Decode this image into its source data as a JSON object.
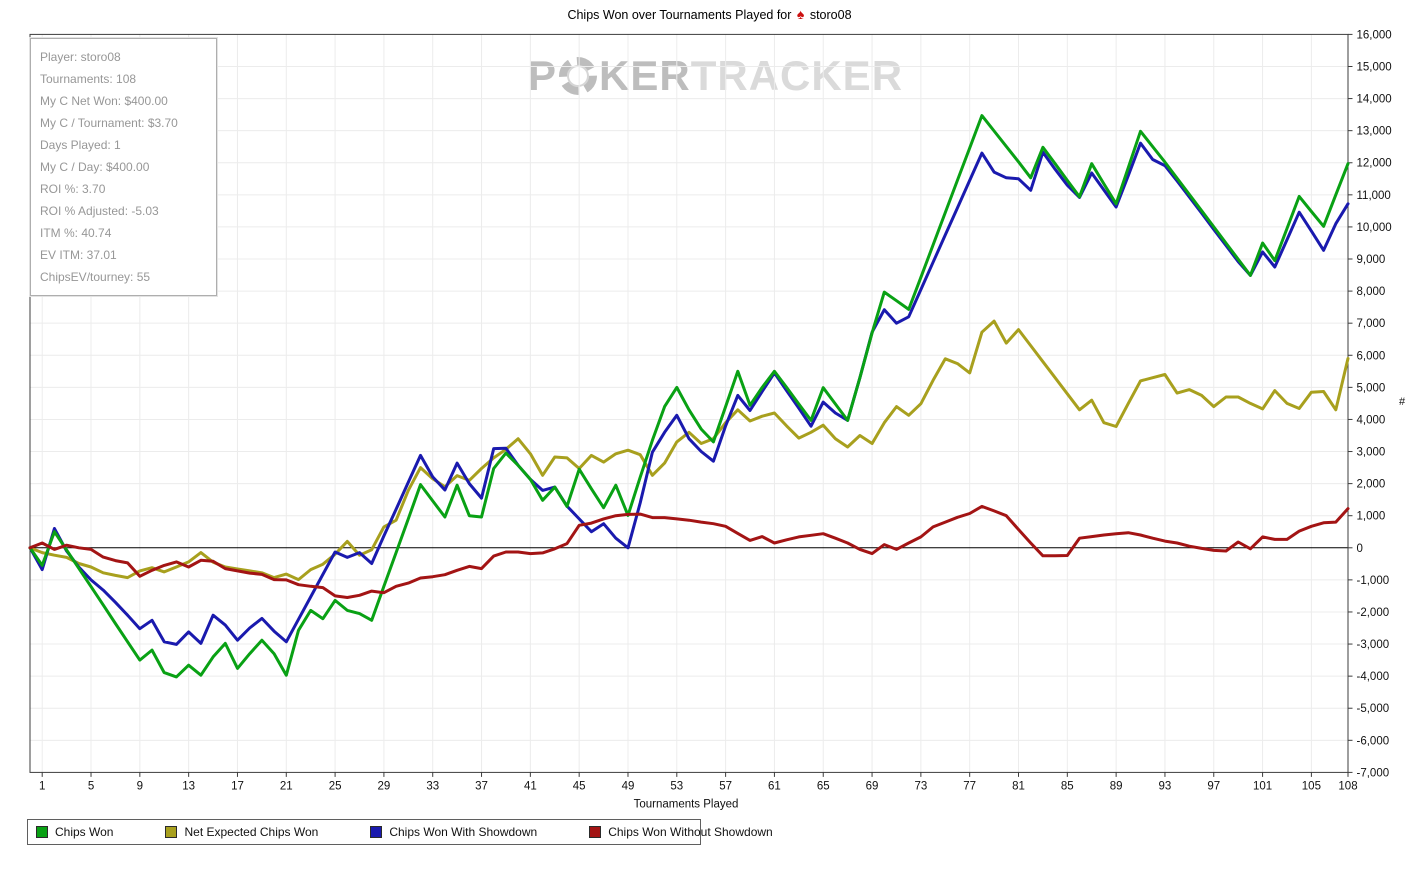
{
  "title": {
    "prefix": "Chips Won over Tournaments Played for",
    "player": "storo08",
    "site_icon": "red-spade"
  },
  "watermark": {
    "part1": "P",
    "part2": "KER",
    "part3": "TRACKER",
    "chip_icon": "poker-chip"
  },
  "infobox": {
    "lines": [
      "Player: storo08",
      "Tournaments: 108",
      "My C Net Won: $400.00",
      "My C / Tournament: $3.70",
      "Days Played: 1",
      "My C / Day: $400.00",
      "ROI %: 3.70",
      "ROI % Adjusted: -5.03",
      "ITM %: 40.74",
      "EV ITM: 37.01",
      "ChipsEV/tourney: 55"
    ]
  },
  "colors": {
    "grid": "#ececec",
    "frame": "#3c3c3c",
    "zero_line": "#000000",
    "tick_text": "#111111",
    "spade": "#cc1111"
  },
  "chart_data": {
    "type": "line",
    "title": "Chips Won over Tournaments Played for storo08",
    "xlabel": "Tournaments Played",
    "ylabel": "#",
    "x_start": 0,
    "x_end": 108,
    "ylim": [
      -7000,
      16000
    ],
    "y_tick_step": 1000,
    "grid": true,
    "legend_position": "bottom",
    "x_tick_values": [
      1,
      5,
      9,
      13,
      17,
      21,
      25,
      29,
      33,
      37,
      41,
      45,
      49,
      53,
      57,
      61,
      65,
      69,
      73,
      77,
      81,
      85,
      89,
      93,
      97,
      101,
      105,
      108
    ],
    "series": [
      {
        "name": "Chips Won",
        "color": "#09a114",
        "values": [
          0,
          -550,
          500,
          -70,
          -640,
          -1210,
          -1780,
          -2360,
          -2930,
          -3500,
          -3190,
          -3890,
          -4025,
          -3660,
          -3970,
          -3400,
          -2980,
          -3760,
          -3300,
          -2880,
          -3300,
          -3970,
          -2570,
          -1950,
          -2210,
          -1640,
          -1950,
          -2050,
          -2260,
          -1200,
          -150,
          900,
          1970,
          1460,
          960,
          1950,
          1000,
          960,
          2470,
          2950,
          2570,
          2130,
          1480,
          1890,
          1290,
          2450,
          1840,
          1250,
          1950,
          1010,
          2200,
          3350,
          4400,
          5000,
          4300,
          3700,
          3300,
          4400,
          5500,
          4440,
          5000,
          5500,
          5000,
          4480,
          3970,
          4990,
          4480,
          3970,
          5300,
          6700,
          7970,
          7700,
          7430,
          8430,
          9440,
          10450,
          11460,
          12460,
          13470,
          12990,
          12510,
          12030,
          11530,
          12480,
          11970,
          11450,
          10940,
          11970,
          11340,
          10720,
          11850,
          12980,
          12500,
          12020,
          11515,
          11010,
          10505,
          10000,
          9495,
          8990,
          8490,
          9500,
          8950,
          9950,
          10950,
          10480,
          10020,
          11000,
          11970
        ]
      },
      {
        "name": "Net Expected Chips Won",
        "color": "#a8a01e",
        "values": [
          0,
          -150,
          -230,
          -300,
          -490,
          -600,
          -780,
          -860,
          -930,
          -720,
          -620,
          -750,
          -600,
          -440,
          -150,
          -450,
          -600,
          -660,
          -720,
          -780,
          -930,
          -820,
          -990,
          -680,
          -510,
          -200,
          200,
          -230,
          -60,
          650,
          860,
          1790,
          2500,
          2150,
          1900,
          2250,
          2100,
          2470,
          2800,
          3070,
          3400,
          2930,
          2260,
          2830,
          2800,
          2470,
          2880,
          2670,
          2930,
          3040,
          2900,
          2260,
          2640,
          3300,
          3600,
          3250,
          3400,
          3900,
          4300,
          3950,
          4100,
          4200,
          3800,
          3420,
          3600,
          3820,
          3400,
          3140,
          3500,
          3250,
          3900,
          4400,
          4130,
          4490,
          5220,
          5890,
          5740,
          5450,
          6720,
          7065,
          6380,
          6800,
          6300,
          5800,
          5300,
          4800,
          4300,
          4600,
          3900,
          3780,
          4500,
          5200,
          5300,
          5400,
          4820,
          4930,
          4750,
          4400,
          4700,
          4700,
          4500,
          4330,
          4900,
          4500,
          4340,
          4850,
          4870,
          4300,
          5900
        ]
      },
      {
        "name": "Chips Won With Showdown",
        "color": "#1a1aae",
        "values": [
          0,
          -680,
          600,
          -100,
          -600,
          -1000,
          -1320,
          -1700,
          -2100,
          -2520,
          -2260,
          -2930,
          -3010,
          -2620,
          -2980,
          -2100,
          -2410,
          -2880,
          -2500,
          -2200,
          -2600,
          -2930,
          -2230,
          -1530,
          -830,
          -130,
          -300,
          -150,
          -490,
          370,
          1200,
          2040,
          2880,
          2210,
          1800,
          2640,
          2000,
          1550,
          3090,
          3100,
          2570,
          2130,
          1790,
          1890,
          1300,
          900,
          500,
          750,
          300,
          0,
          1400,
          2980,
          3600,
          4130,
          3400,
          3000,
          2700,
          3800,
          4750,
          4280,
          4870,
          5450,
          4900,
          4350,
          3790,
          4540,
          4200,
          3970,
          5300,
          6720,
          7420,
          7000,
          7200,
          8050,
          8900,
          9750,
          10600,
          11450,
          12300,
          11710,
          11530,
          11500,
          11140,
          12330,
          11800,
          11300,
          10920,
          11680,
          11150,
          10620,
          11600,
          12610,
          12100,
          11910,
          11430,
          10930,
          10430,
          9920,
          9420,
          8920,
          8490,
          9220,
          8750,
          9600,
          10460,
          9870,
          9270,
          10100,
          10720
        ]
      },
      {
        "name": "Chips Won Without Showdown",
        "color": "#a31414",
        "values": [
          0,
          150,
          -50,
          80,
          0,
          -50,
          -290,
          -400,
          -470,
          -890,
          -700,
          -550,
          -440,
          -600,
          -390,
          -420,
          -650,
          -720,
          -790,
          -830,
          -990,
          -1000,
          -1150,
          -1200,
          -1240,
          -1500,
          -1550,
          -1480,
          -1350,
          -1400,
          -1200,
          -1100,
          -940,
          -900,
          -840,
          -700,
          -580,
          -650,
          -260,
          -130,
          -130,
          -180,
          -160,
          -30,
          130,
          700,
          770,
          900,
          1000,
          1040,
          1050,
          940,
          940,
          900,
          860,
          800,
          750,
          670,
          450,
          230,
          350,
          150,
          250,
          340,
          390,
          440,
          300,
          150,
          -50,
          -180,
          100,
          -50,
          150,
          340,
          650,
          800,
          950,
          1070,
          1290,
          1150,
          1000,
          570,
          150,
          -250,
          -250,
          -240,
          300,
          350,
          400,
          440,
          470,
          400,
          300,
          210,
          150,
          50,
          -20,
          -80,
          -100,
          180,
          -30,
          340,
          260,
          260,
          520,
          670,
          780,
          800,
          1220
        ]
      }
    ]
  }
}
